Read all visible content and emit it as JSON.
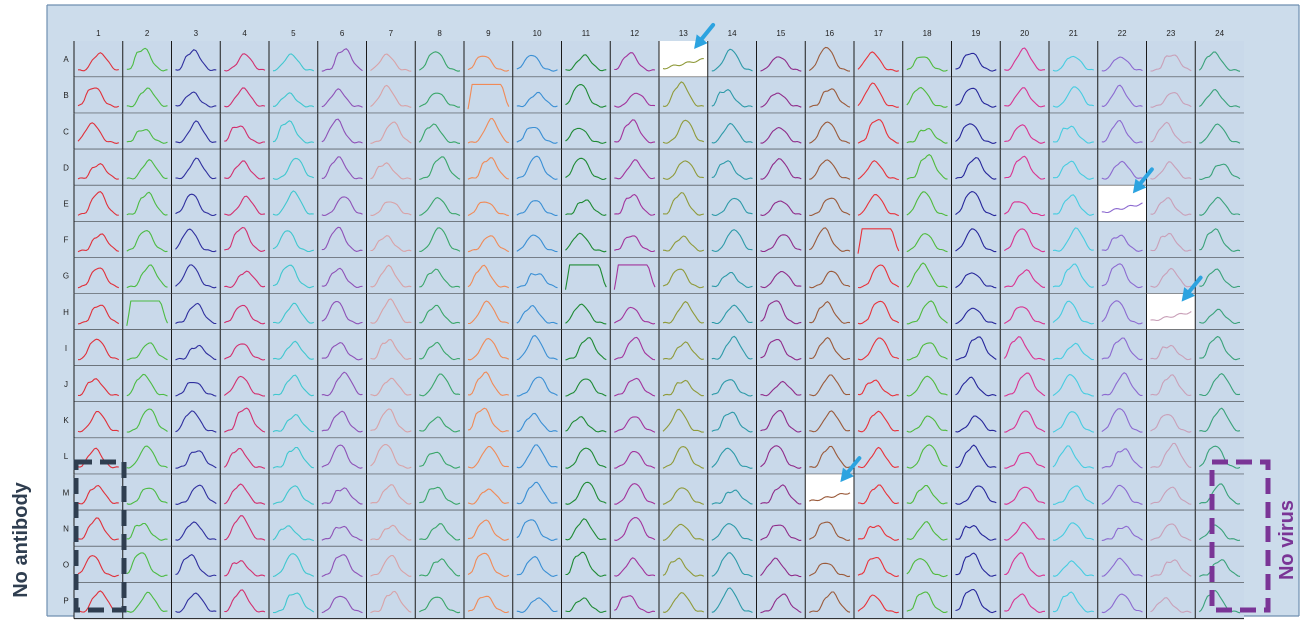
{
  "plate": {
    "column_labels": [
      "1",
      "2",
      "3",
      "4",
      "5",
      "6",
      "7",
      "8",
      "9",
      "10",
      "11",
      "12",
      "13",
      "14",
      "15",
      "16",
      "17",
      "18",
      "19",
      "20",
      "21",
      "22",
      "23",
      "24"
    ],
    "row_labels": [
      "A",
      "B",
      "C",
      "D",
      "E",
      "F",
      "G",
      "H",
      "I",
      "J",
      "K",
      "L",
      "M",
      "N",
      "O",
      "P"
    ],
    "column_colors": [
      "#e0303a",
      "#4cbb43",
      "#2f2f9e",
      "#d22f6e",
      "#3fc7cf",
      "#8e52b7",
      "#d8a2a7",
      "#3aa66a",
      "#f08a57",
      "#3a8fd4",
      "#1e8a34",
      "#a2349c",
      "#8f9a3a",
      "#2d9aa8",
      "#8f2c8a",
      "#9a5a3a",
      "#e8323a",
      "#4fba3c",
      "#26269a",
      "#d93491",
      "#46cce0",
      "#8c6ad0",
      "#c9a0b8",
      "#3aa27a"
    ],
    "highlighted_wells": [
      "A13",
      "E22",
      "H23",
      "M16"
    ],
    "flat_top_wells": [
      "B9",
      "F17",
      "G11",
      "G12",
      "H2"
    ]
  },
  "labels": {
    "left": "No antibody",
    "right": "No virus"
  },
  "colors": {
    "arrow": "#2ca3e0",
    "left_box": "#2f3e50",
    "right_box": "#7a3596",
    "left_text": "#2f3e50",
    "right_text": "#7a3596"
  }
}
